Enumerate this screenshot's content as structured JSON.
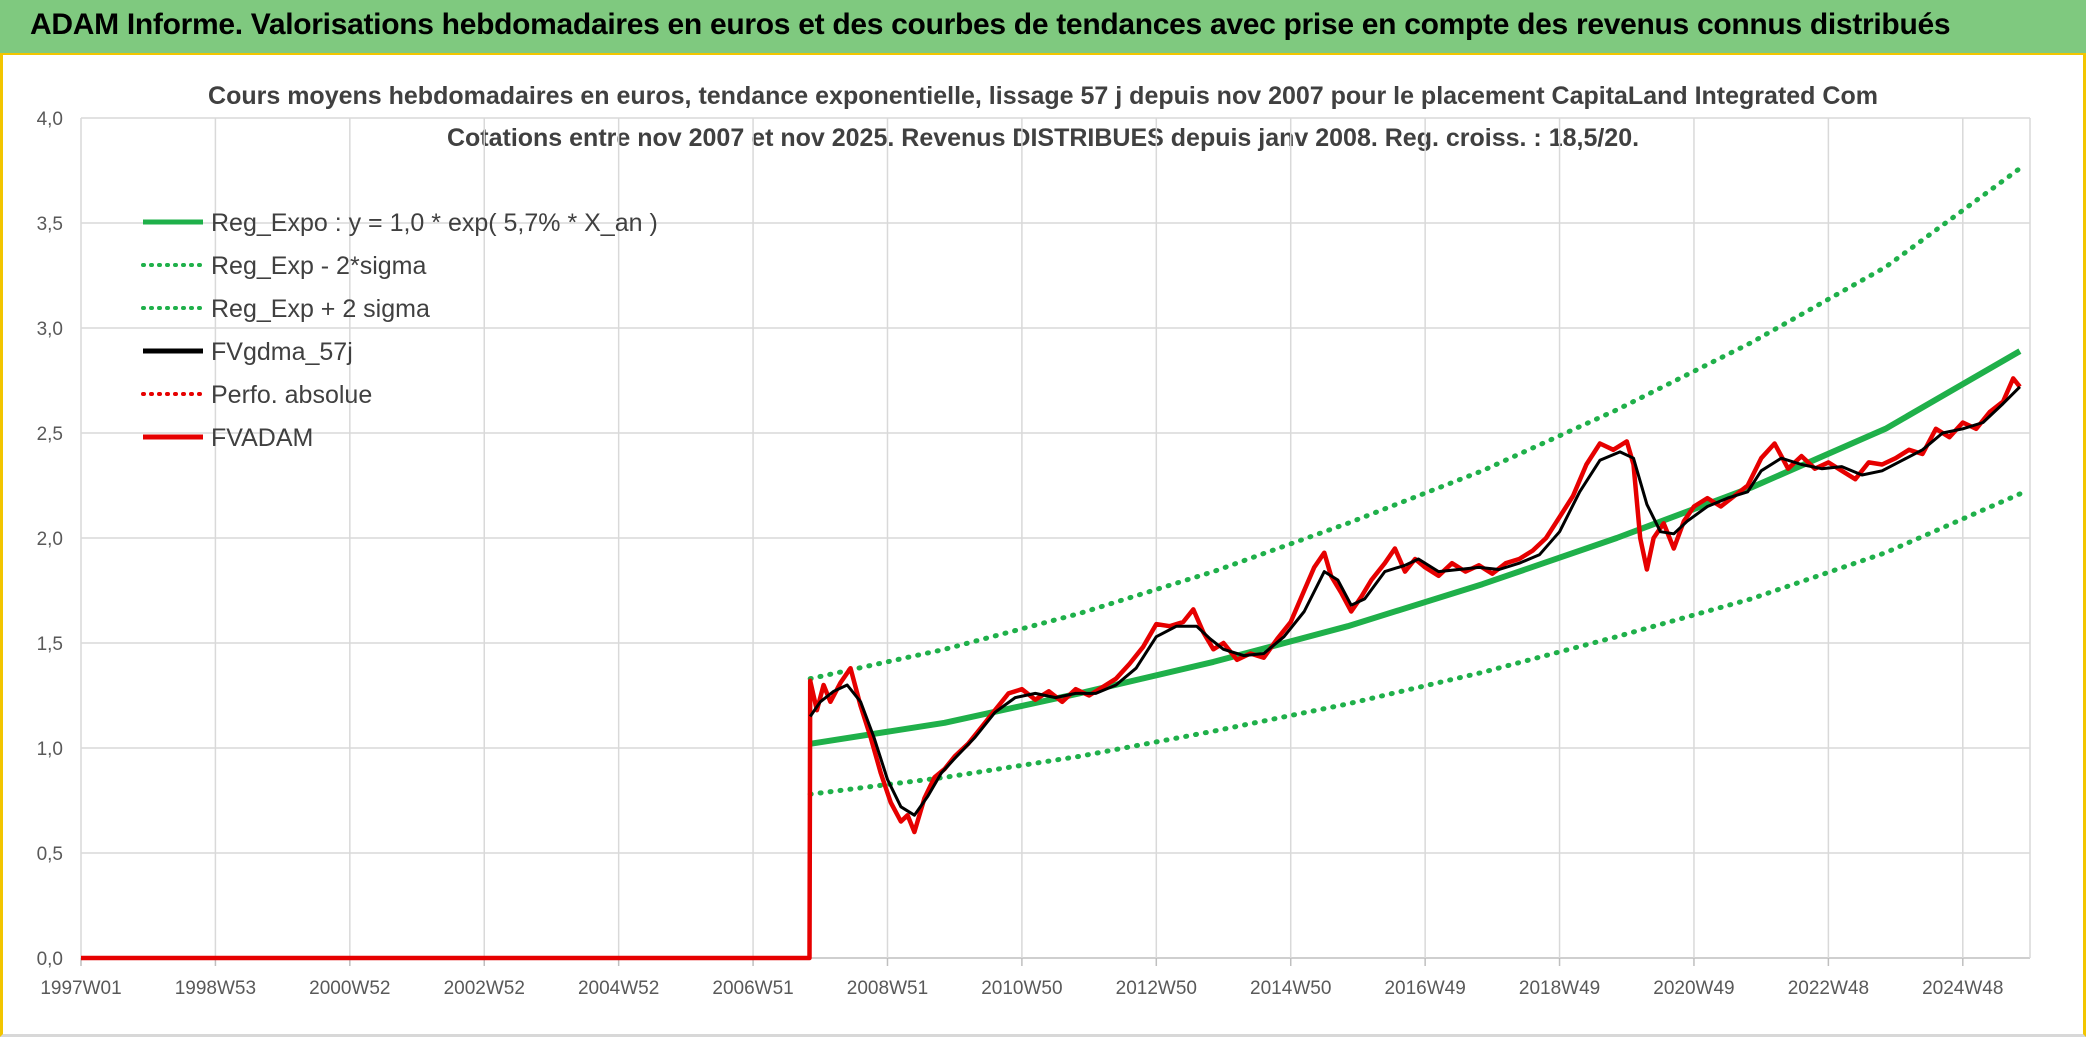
{
  "header": {
    "title": "ADAM Informe. Valorisations hebdomadaires en euros et des courbes de tendances avec prise en compte des revenus connus distribués"
  },
  "chart_data": {
    "type": "line",
    "title": "Cours moyens hebdomadaires en euros, tendance exponentielle, lissage 57 j depuis nov 2007 pour le placement CapitaLand Integrated Com",
    "subtitle": "Cotations entre nov 2007 et nov 2025. Revenus DISTRIBUES depuis janv 2008. Reg. croiss. : 18,5/20.",
    "xlabel": "",
    "ylabel": "",
    "ylim": [
      0,
      4
    ],
    "xlim": [
      1997.0,
      2026.0
    ],
    "y_ticks": [
      "0,0",
      "0,5",
      "1,0",
      "1,5",
      "2,0",
      "2,5",
      "3,0",
      "3,5",
      "4,0"
    ],
    "x_ticks": [
      {
        "label": "1997W01",
        "t": 1997.0
      },
      {
        "label": "1998W53",
        "t": 1999.0
      },
      {
        "label": "2000W52",
        "t": 2001.0
      },
      {
        "label": "2002W52",
        "t": 2003.0
      },
      {
        "label": "2004W52",
        "t": 2005.0
      },
      {
        "label": "2006W51",
        "t": 2007.0
      },
      {
        "label": "2008W51",
        "t": 2009.0
      },
      {
        "label": "2010W50",
        "t": 2011.0
      },
      {
        "label": "2012W50",
        "t": 2013.0
      },
      {
        "label": "2014W50",
        "t": 2015.0
      },
      {
        "label": "2016W49",
        "t": 2017.0
      },
      {
        "label": "2018W49",
        "t": 2019.0
      },
      {
        "label": "2020W49",
        "t": 2021.0
      },
      {
        "label": "2022W48",
        "t": 2023.0
      },
      {
        "label": "2024W48",
        "t": 2025.0
      }
    ],
    "grid": true,
    "legend_position": "top-left",
    "legend": [
      {
        "label": "Reg_Expo : y = 1,0 * exp( 5,7% *  X_an )",
        "color": "#1fb04a",
        "style": "solid"
      },
      {
        "label": "Reg_Exp - 2*sigma",
        "color": "#1fb04a",
        "style": "dotted"
      },
      {
        "label": "Reg_Exp + 2 sigma",
        "color": "#1fb04a",
        "style": "dotted"
      },
      {
        "label": "FVgdma_57j",
        "color": "#000000",
        "style": "solid"
      },
      {
        "label": "Perfo. absolue",
        "color": "#e60000",
        "style": "dotted"
      },
      {
        "label": "FVADAM",
        "color": "#e60000",
        "style": "solid"
      }
    ],
    "series": [
      {
        "name": "Reg_Expo : y = 1,0 * exp( 5,7% *  X_an )",
        "color": "#1fb04a",
        "points": [
          [
            2007.85,
            1.02
          ],
          [
            2009.85,
            1.12
          ],
          [
            2011.85,
            1.26
          ],
          [
            2013.85,
            1.41
          ],
          [
            2015.85,
            1.58
          ],
          [
            2017.85,
            1.78
          ],
          [
            2019.85,
            2.0
          ],
          [
            2021.85,
            2.24
          ],
          [
            2023.85,
            2.52
          ],
          [
            2025.85,
            2.89
          ]
        ]
      },
      {
        "name": "Reg_Exp - 2*sigma",
        "color": "#1fb04a",
        "points": [
          [
            2007.85,
            0.78
          ],
          [
            2009.85,
            0.86
          ],
          [
            2011.85,
            0.96
          ],
          [
            2013.85,
            1.08
          ],
          [
            2015.85,
            1.21
          ],
          [
            2017.85,
            1.36
          ],
          [
            2019.85,
            1.53
          ],
          [
            2021.85,
            1.71
          ],
          [
            2023.85,
            1.93
          ],
          [
            2025.85,
            2.21
          ]
        ]
      },
      {
        "name": "Reg_Exp + 2 sigma",
        "color": "#1fb04a",
        "points": [
          [
            2007.85,
            1.33
          ],
          [
            2009.85,
            1.47
          ],
          [
            2011.85,
            1.64
          ],
          [
            2013.85,
            1.84
          ],
          [
            2015.85,
            2.07
          ],
          [
            2017.85,
            2.32
          ],
          [
            2019.85,
            2.61
          ],
          [
            2021.85,
            2.93
          ],
          [
            2023.85,
            3.29
          ],
          [
            2025.85,
            3.76
          ]
        ]
      },
      {
        "name": "FVgdma_57j",
        "color": "#000000",
        "points": [
          [
            2007.85,
            1.15
          ],
          [
            2008.0,
            1.22
          ],
          [
            2008.2,
            1.27
          ],
          [
            2008.4,
            1.3
          ],
          [
            2008.6,
            1.22
          ],
          [
            2008.8,
            1.05
          ],
          [
            2009.0,
            0.85
          ],
          [
            2009.2,
            0.72
          ],
          [
            2009.4,
            0.68
          ],
          [
            2009.6,
            0.77
          ],
          [
            2009.8,
            0.88
          ],
          [
            2010.0,
            0.95
          ],
          [
            2010.3,
            1.05
          ],
          [
            2010.6,
            1.17
          ],
          [
            2010.9,
            1.24
          ],
          [
            2011.2,
            1.26
          ],
          [
            2011.5,
            1.24
          ],
          [
            2011.8,
            1.26
          ],
          [
            2012.1,
            1.26
          ],
          [
            2012.4,
            1.3
          ],
          [
            2012.7,
            1.38
          ],
          [
            2013.0,
            1.53
          ],
          [
            2013.3,
            1.58
          ],
          [
            2013.6,
            1.58
          ],
          [
            2013.8,
            1.52
          ],
          [
            2014.0,
            1.47
          ],
          [
            2014.3,
            1.44
          ],
          [
            2014.6,
            1.45
          ],
          [
            2014.9,
            1.53
          ],
          [
            2015.2,
            1.65
          ],
          [
            2015.5,
            1.84
          ],
          [
            2015.7,
            1.8
          ],
          [
            2015.9,
            1.68
          ],
          [
            2016.1,
            1.71
          ],
          [
            2016.4,
            1.84
          ],
          [
            2016.7,
            1.87
          ],
          [
            2016.9,
            1.9
          ],
          [
            2017.2,
            1.84
          ],
          [
            2017.5,
            1.85
          ],
          [
            2017.8,
            1.86
          ],
          [
            2018.1,
            1.85
          ],
          [
            2018.4,
            1.88
          ],
          [
            2018.7,
            1.92
          ],
          [
            2019.0,
            2.03
          ],
          [
            2019.3,
            2.22
          ],
          [
            2019.6,
            2.37
          ],
          [
            2019.9,
            2.41
          ],
          [
            2020.1,
            2.38
          ],
          [
            2020.3,
            2.16
          ],
          [
            2020.5,
            2.03
          ],
          [
            2020.7,
            2.02
          ],
          [
            2020.9,
            2.08
          ],
          [
            2021.2,
            2.15
          ],
          [
            2021.5,
            2.19
          ],
          [
            2021.8,
            2.22
          ],
          [
            2022.0,
            2.32
          ],
          [
            2022.3,
            2.38
          ],
          [
            2022.6,
            2.35
          ],
          [
            2022.9,
            2.33
          ],
          [
            2023.2,
            2.34
          ],
          [
            2023.5,
            2.3
          ],
          [
            2023.8,
            2.32
          ],
          [
            2024.1,
            2.37
          ],
          [
            2024.4,
            2.42
          ],
          [
            2024.7,
            2.5
          ],
          [
            2025.0,
            2.52
          ],
          [
            2025.3,
            2.55
          ],
          [
            2025.6,
            2.64
          ],
          [
            2025.85,
            2.72
          ]
        ]
      },
      {
        "name": "FVADAM",
        "color": "#e60000",
        "points": [
          [
            1997.0,
            0.0
          ],
          [
            2007.84,
            0.0
          ],
          [
            2007.85,
            1.32
          ],
          [
            2007.95,
            1.18
          ],
          [
            2008.05,
            1.3
          ],
          [
            2008.15,
            1.22
          ],
          [
            2008.3,
            1.31
          ],
          [
            2008.45,
            1.38
          ],
          [
            2008.6,
            1.2
          ],
          [
            2008.75,
            1.05
          ],
          [
            2008.9,
            0.88
          ],
          [
            2009.05,
            0.74
          ],
          [
            2009.2,
            0.65
          ],
          [
            2009.3,
            0.68
          ],
          [
            2009.4,
            0.6
          ],
          [
            2009.55,
            0.76
          ],
          [
            2009.7,
            0.86
          ],
          [
            2009.85,
            0.9
          ],
          [
            2010.0,
            0.96
          ],
          [
            2010.2,
            1.02
          ],
          [
            2010.4,
            1.1
          ],
          [
            2010.6,
            1.18
          ],
          [
            2010.8,
            1.26
          ],
          [
            2011.0,
            1.28
          ],
          [
            2011.2,
            1.23
          ],
          [
            2011.4,
            1.27
          ],
          [
            2011.6,
            1.22
          ],
          [
            2011.8,
            1.28
          ],
          [
            2012.0,
            1.25
          ],
          [
            2012.2,
            1.29
          ],
          [
            2012.4,
            1.33
          ],
          [
            2012.6,
            1.4
          ],
          [
            2012.8,
            1.48
          ],
          [
            2013.0,
            1.59
          ],
          [
            2013.2,
            1.58
          ],
          [
            2013.4,
            1.6
          ],
          [
            2013.55,
            1.66
          ],
          [
            2013.7,
            1.55
          ],
          [
            2013.85,
            1.47
          ],
          [
            2014.0,
            1.5
          ],
          [
            2014.2,
            1.42
          ],
          [
            2014.4,
            1.45
          ],
          [
            2014.6,
            1.43
          ],
          [
            2014.8,
            1.52
          ],
          [
            2015.0,
            1.6
          ],
          [
            2015.2,
            1.75
          ],
          [
            2015.35,
            1.86
          ],
          [
            2015.5,
            1.93
          ],
          [
            2015.6,
            1.82
          ],
          [
            2015.75,
            1.74
          ],
          [
            2015.9,
            1.65
          ],
          [
            2016.05,
            1.72
          ],
          [
            2016.2,
            1.8
          ],
          [
            2016.4,
            1.88
          ],
          [
            2016.55,
            1.95
          ],
          [
            2016.7,
            1.84
          ],
          [
            2016.85,
            1.9
          ],
          [
            2017.0,
            1.86
          ],
          [
            2017.2,
            1.82
          ],
          [
            2017.4,
            1.88
          ],
          [
            2017.6,
            1.84
          ],
          [
            2017.8,
            1.87
          ],
          [
            2018.0,
            1.83
          ],
          [
            2018.2,
            1.88
          ],
          [
            2018.4,
            1.9
          ],
          [
            2018.6,
            1.94
          ],
          [
            2018.8,
            2.0
          ],
          [
            2019.0,
            2.1
          ],
          [
            2019.2,
            2.2
          ],
          [
            2019.4,
            2.35
          ],
          [
            2019.6,
            2.45
          ],
          [
            2019.8,
            2.42
          ],
          [
            2020.0,
            2.46
          ],
          [
            2020.1,
            2.35
          ],
          [
            2020.2,
            2.0
          ],
          [
            2020.3,
            1.85
          ],
          [
            2020.4,
            2.0
          ],
          [
            2020.55,
            2.07
          ],
          [
            2020.7,
            1.95
          ],
          [
            2020.85,
            2.08
          ],
          [
            2021.0,
            2.15
          ],
          [
            2021.2,
            2.19
          ],
          [
            2021.4,
            2.15
          ],
          [
            2021.6,
            2.2
          ],
          [
            2021.8,
            2.25
          ],
          [
            2022.0,
            2.38
          ],
          [
            2022.2,
            2.45
          ],
          [
            2022.4,
            2.33
          ],
          [
            2022.6,
            2.39
          ],
          [
            2022.8,
            2.33
          ],
          [
            2023.0,
            2.36
          ],
          [
            2023.2,
            2.32
          ],
          [
            2023.4,
            2.28
          ],
          [
            2023.6,
            2.36
          ],
          [
            2023.8,
            2.35
          ],
          [
            2024.0,
            2.38
          ],
          [
            2024.2,
            2.42
          ],
          [
            2024.4,
            2.4
          ],
          [
            2024.6,
            2.52
          ],
          [
            2024.8,
            2.48
          ],
          [
            2025.0,
            2.55
          ],
          [
            2025.2,
            2.52
          ],
          [
            2025.4,
            2.6
          ],
          [
            2025.6,
            2.65
          ],
          [
            2025.75,
            2.76
          ],
          [
            2025.85,
            2.72
          ]
        ]
      }
    ]
  }
}
